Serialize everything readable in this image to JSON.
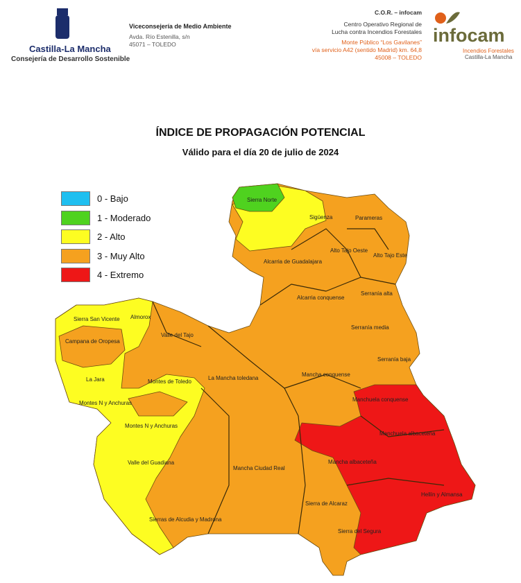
{
  "header": {
    "logo_left": {
      "name": "Castilla-La Mancha",
      "subtitle": "Consejería de Desarrollo Sostenible"
    },
    "office": {
      "title": "Viceconsejería de Medio Ambiente",
      "address_1": "Avda. Río Estenilla, s/n",
      "address_2": "45071 – TOLEDO"
    },
    "cor": {
      "title": "C.O.R. – infocam",
      "line_1": "Centro Operativo Regional de",
      "line_2": "Lucha contra Incendios Forestales",
      "place": "Monte Público “Los Gavilanes”",
      "road": "vía servicio A42 (sentido Madrid) km. 64,8",
      "city": "45008 – TOLEDO"
    },
    "logo_right": {
      "name": "infocam",
      "line_1": "Incendios Forestales",
      "line_2": "Castilla-La Mancha"
    }
  },
  "title": "ÍNDICE DE PROPAGACIÓN POTENCIAL",
  "subtitle": "Válido para el día 20 de julio de 2024",
  "legend": [
    {
      "label": "0 - Bajo",
      "color": "#1fbff0"
    },
    {
      "label": "1 - Moderado",
      "color": "#4fd21f"
    },
    {
      "label": "2 - Alto",
      "color": "#fdfd22"
    },
    {
      "label": "3 - Muy Alto",
      "color": "#f5a11f"
    },
    {
      "label": "4 - Extremo",
      "color": "#ee1717"
    }
  ],
  "regions": [
    "Sierra Norte",
    "Sigüenza",
    "Parameras",
    "Alto Tajo Oeste",
    "Alto Tajo Este",
    "Alcarria de Guadalajara",
    "Alcarria conquense",
    "Serranía alta",
    "Serranía media",
    "Serranía baja",
    "Sierra San Vicente",
    "Almorox",
    "Campana de Oropesa",
    "Valle del Tajo",
    "La Jara",
    "Montes de Toledo",
    "Montes N y Anchuras",
    "Montes N y Anchuras",
    "La Mancha toledana",
    "Mancha conquense",
    "Manchuela conquense",
    "Manchuela albaceteña",
    "Mancha albaceteña",
    "Valle del Guadiana",
    "Mancha Ciudad Real",
    "Sierra de Alcaraz",
    "Hellín y Almansa",
    "Sierras de Alcudia y Madrona",
    "Sierra del Segura"
  ]
}
